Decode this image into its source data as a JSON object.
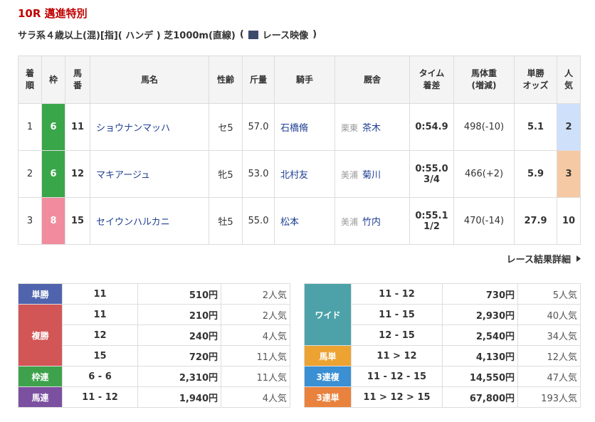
{
  "header": {
    "title": "10R 邁進特別",
    "conditions": "サラ系４歳以上(混)[指]( ハンデ ) 芝1000m(直線)",
    "video_open": "(",
    "video_label": "レース映像",
    "video_close": ")"
  },
  "results": {
    "columns": [
      [
        "着",
        "順"
      ],
      [
        "枠"
      ],
      [
        "馬",
        "番"
      ],
      [
        "馬名"
      ],
      [
        "性齢"
      ],
      [
        "斤量"
      ],
      [
        "騎手"
      ],
      [
        "厩舎"
      ],
      [
        "タイム",
        "着差"
      ],
      [
        "馬体重",
        "(増減)"
      ],
      [
        "単勝",
        "オッズ"
      ],
      [
        "人",
        "気"
      ]
    ],
    "rows": [
      {
        "rank": "1",
        "waku": "6",
        "waku_color": "#3aa64a",
        "number": "11",
        "horse": "ショウナンマッハ",
        "sex_age": "セ5",
        "weight": "57.0",
        "jockey": "石橋脩",
        "region": "栗東",
        "trainer": "茶木",
        "time": "0:54.9",
        "body_weight": "498(-10)",
        "odds": "5.1",
        "popularity": "2",
        "popularity_color": "#cfe0fb"
      },
      {
        "rank": "2",
        "waku": "6",
        "waku_color": "#3aa64a",
        "number": "12",
        "horse": "マキアージュ",
        "sex_age": "牝5",
        "weight": "53.0",
        "jockey": "北村友",
        "region": "美浦",
        "trainer": "菊川",
        "time": "0:55.0",
        "margin": "3/4",
        "body_weight": "466(+2)",
        "odds": "5.9",
        "popularity": "3",
        "popularity_color": "#f5c9a3"
      },
      {
        "rank": "3",
        "waku": "8",
        "waku_color": "#f08c9e",
        "number": "15",
        "horse": "セイウンハルカニ",
        "sex_age": "牡5",
        "weight": "55.0",
        "jockey": "松本",
        "region": "美浦",
        "trainer": "竹内",
        "time": "0:55.1",
        "margin": "1/2",
        "body_weight": "470(-14)",
        "odds": "27.9",
        "popularity": "10"
      }
    ]
  },
  "detail_link": "レース結果詳細",
  "payouts": {
    "left": [
      {
        "label": "単勝",
        "color": "#4f64ad",
        "entries": [
          {
            "combo": "11",
            "payout": "510円",
            "popularity": "2人気"
          }
        ]
      },
      {
        "label": "複勝",
        "color": "#d25656",
        "entries": [
          {
            "combo": "11",
            "payout": "210円",
            "popularity": "2人気"
          },
          {
            "combo": "12",
            "payout": "240円",
            "popularity": "4人気"
          },
          {
            "combo": "15",
            "payout": "720円",
            "popularity": "11人気"
          }
        ]
      },
      {
        "label": "枠連",
        "color": "#3ea24c",
        "entries": [
          {
            "combo": "6 - 6",
            "payout": "2,310円",
            "popularity": "11人気"
          }
        ]
      },
      {
        "label": "馬連",
        "color": "#7c50a0",
        "entries": [
          {
            "combo": "11 - 12",
            "payout": "1,940円",
            "popularity": "4人気"
          }
        ]
      }
    ],
    "right": [
      {
        "label": "ワイド",
        "color": "#4ca2a8",
        "entries": [
          {
            "combo": "11 - 12",
            "payout": "730円",
            "popularity": "5人気"
          },
          {
            "combo": "11 - 15",
            "payout": "2,930円",
            "popularity": "40人気"
          },
          {
            "combo": "12 - 15",
            "payout": "2,540円",
            "popularity": "34人気"
          }
        ]
      },
      {
        "label": "馬単",
        "color": "#eca332",
        "entries": [
          {
            "combo": "11 > 12",
            "payout": "4,130円",
            "popularity": "12人気"
          }
        ]
      },
      {
        "label": "3連複",
        "color": "#3b8fd3",
        "entries": [
          {
            "combo": "11 - 12 - 15",
            "payout": "14,550円",
            "popularity": "47人気"
          }
        ]
      },
      {
        "label": "3連単",
        "color": "#e8823c",
        "entries": [
          {
            "combo": "11 > 12 > 15",
            "payout": "67,800円",
            "popularity": "193人気"
          }
        ]
      }
    ]
  }
}
